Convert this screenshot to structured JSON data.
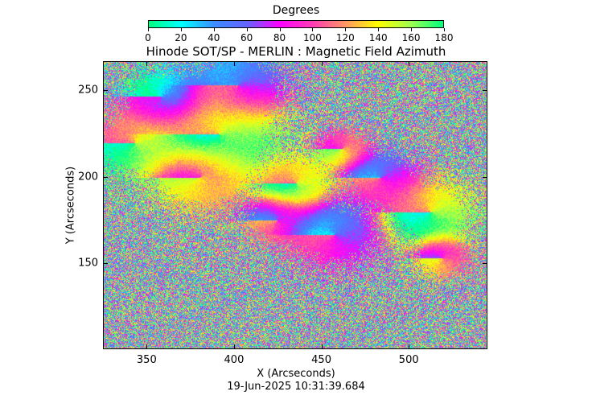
{
  "colorbar": {
    "title": "Degrees",
    "ticks": [
      "0",
      "20",
      "40",
      "60",
      "80",
      "100",
      "120",
      "140",
      "160",
      "180"
    ],
    "range": [
      0,
      180
    ],
    "colors": [
      "#00ff7f",
      "#00ffff",
      "#3c8cff",
      "#6464ff",
      "#ff00ff",
      "#ff3cb4",
      "#ff9664",
      "#ffff00",
      "#a0ff50",
      "#00ff7f"
    ]
  },
  "plot": {
    "title": "Hinode SOT/SP - MERLIN : Magnetic Field Azimuth",
    "x_label": "X (Arcseconds)",
    "y_label": "Y (Arcseconds)",
    "x_ticks": [
      "350",
      "400",
      "450",
      "500"
    ],
    "y_ticks": [
      "250",
      "200",
      "150"
    ],
    "x_range": [
      325,
      545
    ],
    "y_range": [
      100,
      267
    ]
  },
  "timestamp": "19-Jun-2025 10:31:39.684"
}
